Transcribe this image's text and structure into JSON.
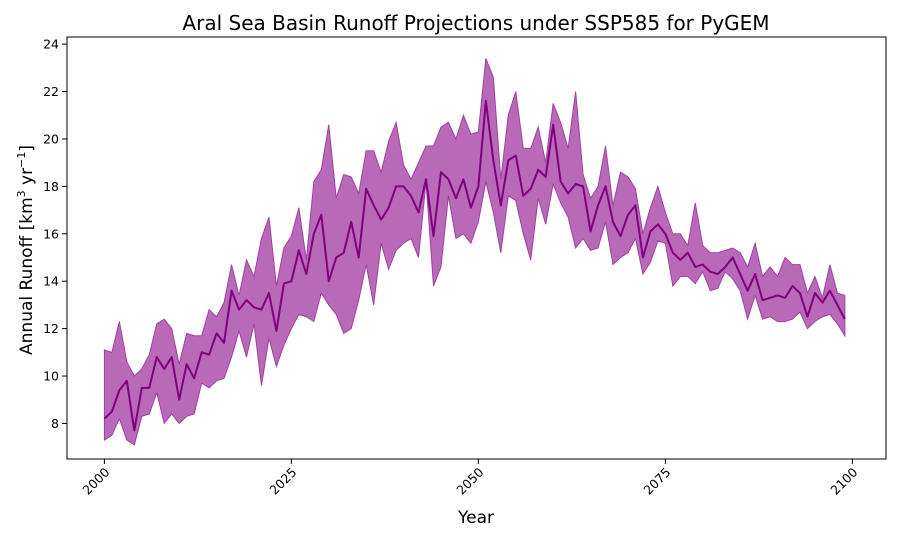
{
  "chart_data": {
    "type": "line",
    "title": "Aral Sea Basin Runoff Projections under SSP585 for PyGEM",
    "xlabel": "Year",
    "ylabel": "Annual Runoff [km",
    "ylabel_unit_exp": "3",
    "ylabel_unit_mid": " yr",
    "ylabel_unit_exp2": "−1",
    "ylabel_end": "]",
    "xlim": [
      1995,
      2104.5
    ],
    "ylim": [
      6.5,
      24.3
    ],
    "x_ticks": [
      2000,
      2025,
      2050,
      2075,
      2100
    ],
    "y_ticks": [
      8,
      10,
      12,
      14,
      16,
      18,
      20,
      22,
      24
    ],
    "grid": false,
    "colors": {
      "line": "#800080",
      "band": "#b86ab8",
      "band_edge": "#a040a0"
    },
    "x": [
      2000,
      2001,
      2002,
      2003,
      2004,
      2005,
      2006,
      2007,
      2008,
      2009,
      2010,
      2011,
      2012,
      2013,
      2014,
      2015,
      2016,
      2017,
      2018,
      2019,
      2020,
      2021,
      2022,
      2023,
      2024,
      2025,
      2026,
      2027,
      2028,
      2029,
      2030,
      2031,
      2032,
      2033,
      2034,
      2035,
      2036,
      2037,
      2038,
      2039,
      2040,
      2041,
      2042,
      2043,
      2044,
      2045,
      2046,
      2047,
      2048,
      2049,
      2050,
      2051,
      2052,
      2053,
      2054,
      2055,
      2056,
      2057,
      2058,
      2059,
      2060,
      2061,
      2062,
      2063,
      2064,
      2065,
      2066,
      2067,
      2068,
      2069,
      2070,
      2071,
      2072,
      2073,
      2074,
      2075,
      2076,
      2077,
      2078,
      2079,
      2080,
      2081,
      2082,
      2083,
      2084,
      2085,
      2086,
      2087,
      2088,
      2089,
      2090,
      2091,
      2092,
      2093,
      2094,
      2095,
      2096,
      2097,
      2098,
      2099
    ],
    "series": [
      {
        "values": [
          8.2,
          8.5,
          9.4,
          9.8,
          7.7,
          9.5,
          9.5,
          10.8,
          10.3,
          10.8,
          9.0,
          10.5,
          9.9,
          11.0,
          10.9,
          11.8,
          11.4,
          13.6,
          12.8,
          13.2,
          12.9,
          12.8,
          13.5,
          11.9,
          13.9,
          14.0,
          15.3,
          14.3,
          16.0,
          16.8,
          14.0,
          15.0,
          15.2,
          16.5,
          15.0,
          17.9,
          17.2,
          16.6,
          17.1,
          18.0,
          18.0,
          17.6,
          16.9,
          18.3,
          15.9,
          18.6,
          18.3,
          17.5,
          18.3,
          17.1,
          18.0,
          21.6,
          19.1,
          17.2,
          19.1,
          19.3,
          17.6,
          17.9,
          18.7,
          18.4,
          20.6,
          18.2,
          17.7,
          18.1,
          18.0,
          16.1,
          17.2,
          18.0,
          16.5,
          15.9,
          16.8,
          17.2,
          15.0,
          16.1,
          16.4,
          16.0,
          15.2,
          14.9,
          15.2,
          14.6,
          14.7,
          14.4,
          14.3,
          14.6,
          15.0,
          14.3,
          13.6,
          14.3,
          13.2,
          13.3,
          13.4,
          13.3,
          13.8,
          13.5,
          12.5,
          13.5,
          13.1,
          13.6,
          13.0,
          12.4
        ]
      }
    ],
    "band_upper": [
      11.1,
      11.0,
      12.3,
      10.6,
      10.0,
      10.3,
      10.9,
      12.2,
      12.4,
      12.0,
      10.5,
      11.8,
      11.7,
      11.7,
      12.8,
      12.5,
      13.1,
      14.7,
      13.4,
      14.9,
      14.2,
      15.8,
      16.7,
      13.8,
      15.4,
      15.9,
      17.1,
      14.9,
      18.2,
      18.7,
      20.6,
      17.5,
      18.5,
      18.4,
      17.7,
      19.5,
      19.5,
      18.6,
      19.9,
      20.7,
      18.9,
      18.3,
      19.0,
      19.7,
      19.7,
      20.5,
      20.7,
      20.0,
      21.0,
      20.2,
      20.3,
      23.4,
      22.6,
      18.3,
      21.0,
      22.0,
      19.6,
      19.6,
      20.5,
      19.0,
      21.5,
      20.7,
      19.6,
      22.0,
      18.5,
      17.5,
      18.0,
      19.7,
      17.2,
      18.6,
      18.4,
      17.9,
      16.0,
      17.1,
      18.0,
      16.9,
      16.0,
      16.0,
      15.5,
      17.3,
      15.5,
      15.2,
      15.2,
      15.3,
      15.4,
      15.2,
      14.6,
      15.6,
      14.2,
      14.6,
      14.2,
      15.0,
      14.7,
      14.7,
      13.5,
      14.2,
      13.3,
      14.7,
      13.5,
      13.4
    ],
    "band_lower": [
      7.3,
      7.5,
      8.2,
      7.3,
      7.1,
      8.3,
      8.4,
      9.3,
      8.0,
      8.4,
      8.0,
      8.3,
      8.4,
      9.7,
      9.5,
      9.8,
      9.9,
      10.8,
      11.9,
      10.8,
      12.2,
      9.6,
      11.6,
      10.4,
      11.3,
      12.0,
      12.6,
      12.5,
      12.3,
      13.5,
      13.0,
      12.6,
      11.8,
      12.0,
      13.2,
      14.7,
      13.0,
      15.6,
      14.5,
      15.3,
      15.6,
      15.8,
      15.0,
      18.2,
      13.8,
      14.6,
      17.6,
      15.8,
      16.0,
      15.6,
      16.5,
      18.2,
      16.9,
      15.2,
      17.6,
      17.4,
      16.0,
      14.9,
      17.5,
      16.4,
      18.1,
      17.3,
      16.7,
      15.4,
      15.8,
      15.3,
      15.4,
      16.5,
      14.7,
      15.0,
      15.2,
      15.8,
      14.3,
      14.8,
      15.7,
      15.6,
      13.8,
      14.2,
      14.2,
      13.9,
      14.4,
      13.6,
      13.7,
      14.4,
      14.1,
      13.6,
      12.4,
      13.4,
      12.4,
      12.5,
      12.3,
      12.3,
      12.4,
      12.7,
      12.0,
      12.3,
      12.5,
      12.6,
      12.2,
      11.7
    ]
  }
}
